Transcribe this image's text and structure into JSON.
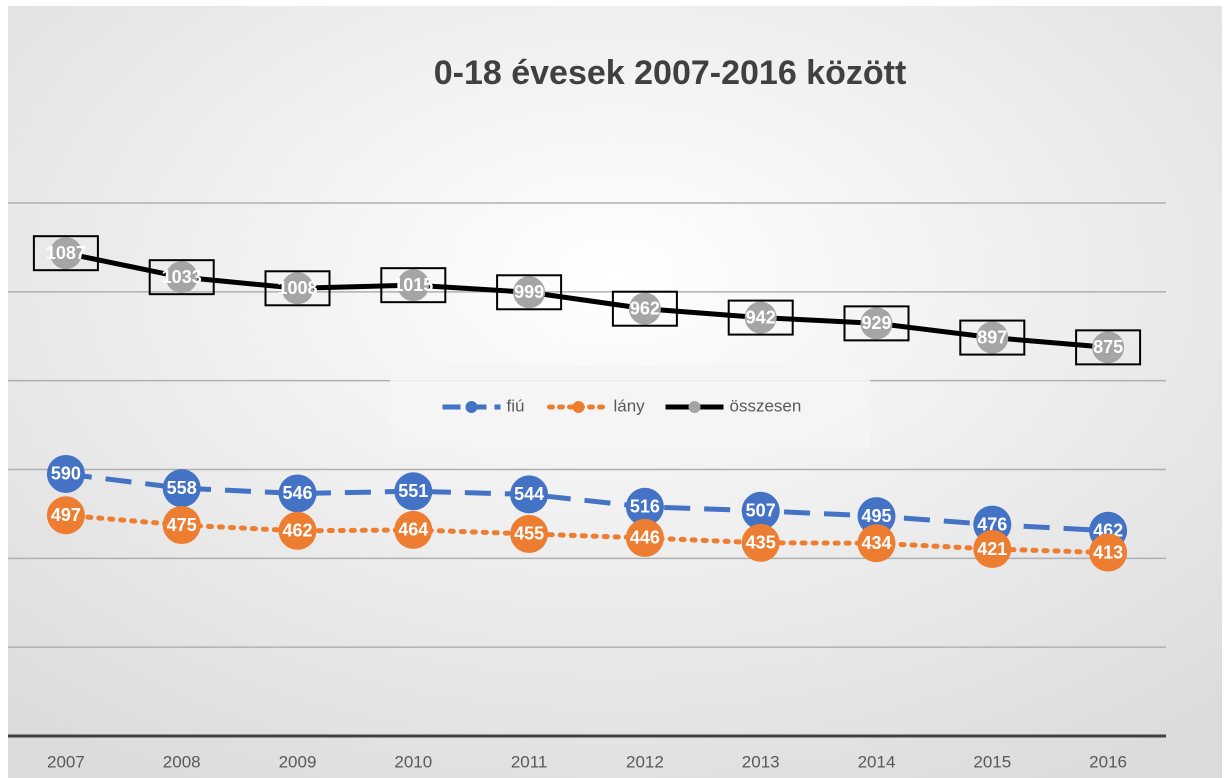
{
  "chart_data": {
    "type": "line",
    "title": "0-18 évesek 2007-2016 között",
    "categories": [
      "2007",
      "2008",
      "2009",
      "2010",
      "2011",
      "2012",
      "2013",
      "2014",
      "2015",
      "2016"
    ],
    "series": [
      {
        "name": "fiú",
        "color": "#4472c4",
        "line_style": "dashed",
        "values": [
          590,
          558,
          546,
          551,
          544,
          516,
          507,
          495,
          476,
          462
        ]
      },
      {
        "name": "lány",
        "color": "#ed7d31",
        "line_style": "dotted",
        "values": [
          497,
          475,
          462,
          464,
          455,
          446,
          435,
          434,
          421,
          413
        ]
      },
      {
        "name": "összesen",
        "color": "#000000",
        "marker_color": "#a5a5a5",
        "line_style": "solid",
        "values": [
          1087,
          1033,
          1008,
          1015,
          999,
          962,
          942,
          929,
          897,
          875
        ]
      }
    ],
    "ylim": [
      0,
      1200
    ],
    "yticks": [
      0,
      200,
      400,
      600,
      800,
      1000,
      1200
    ],
    "grid": true,
    "legend": "center"
  }
}
